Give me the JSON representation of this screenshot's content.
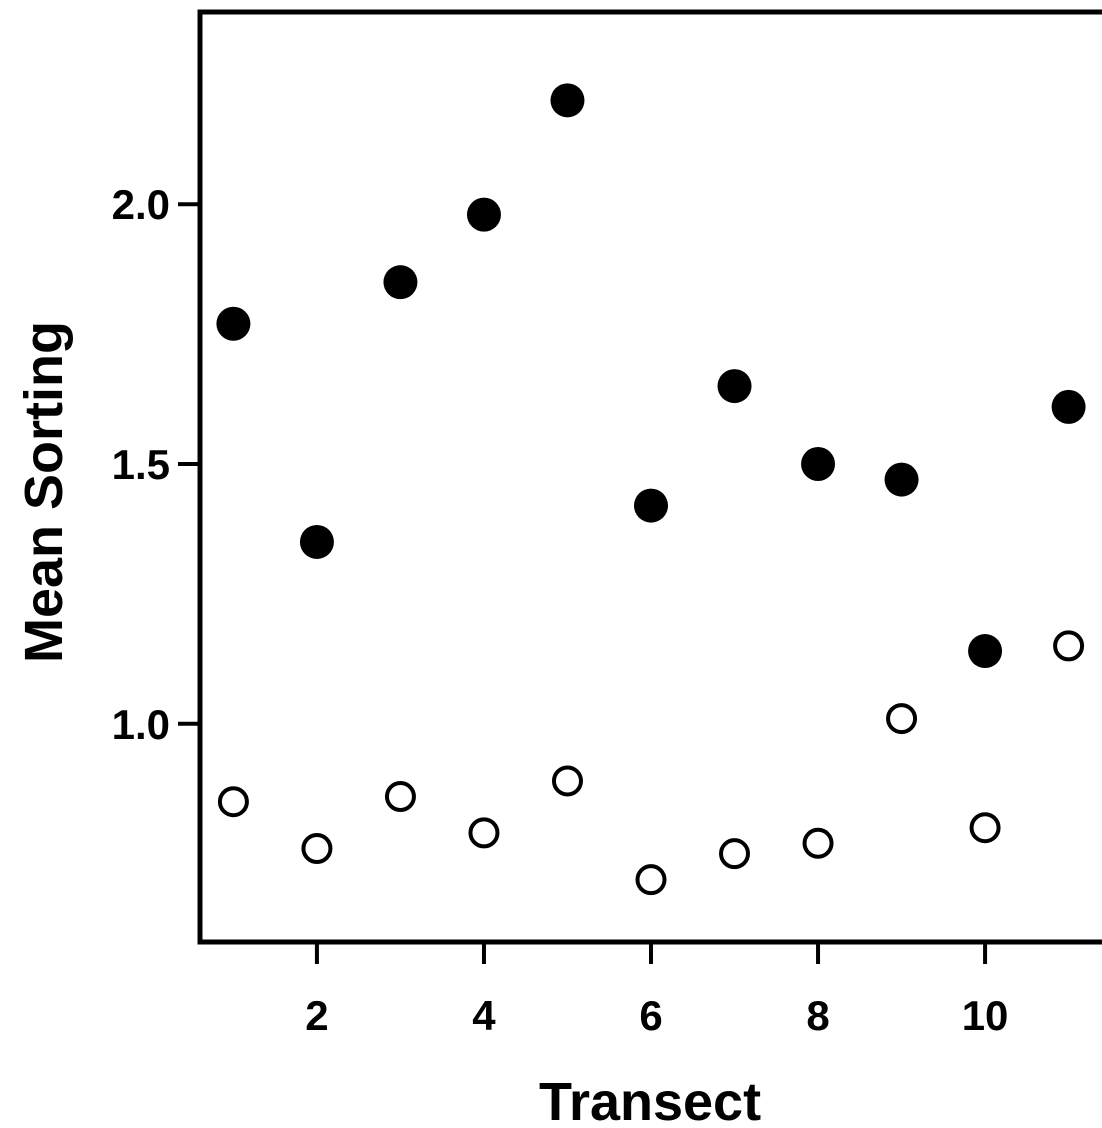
{
  "chart_data": {
    "type": "scatter",
    "title": "",
    "xlabel": "Transect",
    "ylabel": "Mean Sorting",
    "xlim": [
      0.6,
      11.4
    ],
    "ylim": [
      0.58,
      2.37
    ],
    "x_ticks": [
      2,
      4,
      6,
      8,
      10
    ],
    "y_ticks": [
      1.0,
      1.5,
      2.0
    ],
    "x_tick_labels": [
      "2",
      "4",
      "6",
      "8",
      "10"
    ],
    "y_tick_labels": [
      "1.0",
      "1.5",
      "2.0"
    ],
    "grid": false,
    "legend": "none",
    "series": [
      {
        "marker": "filled-circle",
        "color": "#000000",
        "x": [
          1,
          2,
          3,
          4,
          5,
          6,
          7,
          8,
          9,
          10,
          11
        ],
        "y": [
          1.77,
          1.35,
          1.85,
          1.98,
          2.2,
          1.42,
          1.65,
          1.5,
          1.47,
          1.14,
          1.61
        ]
      },
      {
        "marker": "open-circle",
        "color": "#000000",
        "x": [
          1,
          2,
          3,
          4,
          5,
          6,
          7,
          8,
          9,
          10,
          11
        ],
        "y": [
          0.85,
          0.76,
          0.86,
          0.79,
          0.89,
          0.7,
          0.75,
          0.77,
          1.01,
          0.8,
          1.15
        ]
      }
    ]
  }
}
